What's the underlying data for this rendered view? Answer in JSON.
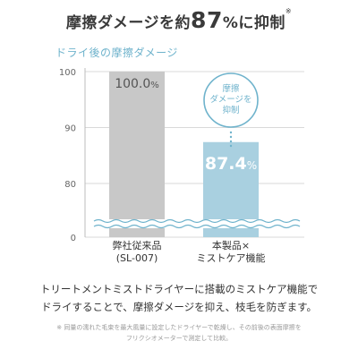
{
  "headline": {
    "main": "摩擦ダメージを約",
    "number": "87",
    "unit": "%",
    "tail": "に抑制",
    "mark": "※"
  },
  "callout": {
    "line1": "摩擦",
    "line2": "ダメージを",
    "line3": "抑制"
  },
  "description": {
    "line1": "トリートメントミストドライヤーに搭載のミストケア機能で",
    "line2": "ドライすることで、摩擦ダメージを抑え、枝毛を防ぎます。"
  },
  "footnote": {
    "line1": "※ 同量の濡れた毛束を最大風量に設定したドライヤーで乾燥し、その前後の表面摩擦を",
    "line2": "フリクシオメーターで測定して比較。"
  },
  "colors": {
    "bar_conventional": "#c8c8c8",
    "bar_product": "#a9d0e0",
    "accent": "#6fb3cc",
    "text": "#3a3a3a"
  },
  "chart_data": {
    "type": "bar",
    "title": "ドライ後の摩擦ダメージ",
    "categories": [
      [
        "弊社従来品",
        "(SL-007)"
      ],
      [
        "本製品×",
        "ミストケア機能"
      ]
    ],
    "values": [
      100.0,
      87.4
    ],
    "value_labels": [
      {
        "number": "100.0",
        "unit": "%"
      },
      {
        "number": "87.4",
        "unit": "%"
      }
    ],
    "yticks": [
      0,
      80,
      90,
      100
    ],
    "ylim": [
      70,
      100
    ],
    "axis_break": true,
    "grid": true
  }
}
